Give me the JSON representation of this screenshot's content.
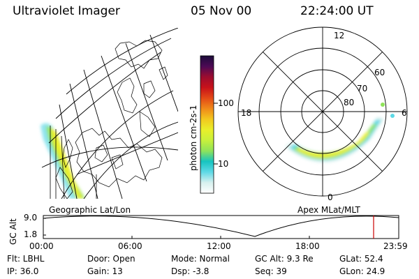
{
  "header": {
    "instrument": "Ultraviolet Imager",
    "date": "05 Nov 00",
    "time": "22:24:00 UT"
  },
  "colorbar": {
    "label": "photon cm-2s-1",
    "ticks": [
      "100",
      "10"
    ],
    "colors": [
      "#ffffff",
      "#d7f0ee",
      "#5ed9e6",
      "#17c4c0",
      "#8fe35a",
      "#c8f03c",
      "#e9ef2a",
      "#f2c81f",
      "#f08a1a",
      "#e34a17",
      "#c8121a",
      "#9c0c2f",
      "#4d0a55",
      "#1c0c3a"
    ]
  },
  "maps": {
    "left_label": "Geographic Lat/Lon",
    "right_label": "Apex MLat/MLT"
  },
  "polar": {
    "mlt_labels": {
      "top": "12",
      "left": "18",
      "right": "6",
      "bottom": "0"
    },
    "lat_labels": [
      "60",
      "70",
      "80"
    ]
  },
  "timeline": {
    "axis_title": "GC Alt",
    "y_top": "9.0",
    "y_bottom": "1.8",
    "ticks": [
      "00:00",
      "06:00",
      "12:00",
      "18:00",
      "23:59"
    ],
    "marker_color": "#cc0000"
  },
  "info": {
    "filter": "Flt: LBHL",
    "ip": "IP: 36.0",
    "door": "Door: Open",
    "gain": "Gain: 13",
    "mode": "Mode: Normal",
    "dsp": "Dsp:   -3.8",
    "gc_alt": "GC Alt: 9.3 Re",
    "seq": "Seq: 39",
    "glat": "GLat:  52.4",
    "glon": "GLon:  24.9"
  }
}
